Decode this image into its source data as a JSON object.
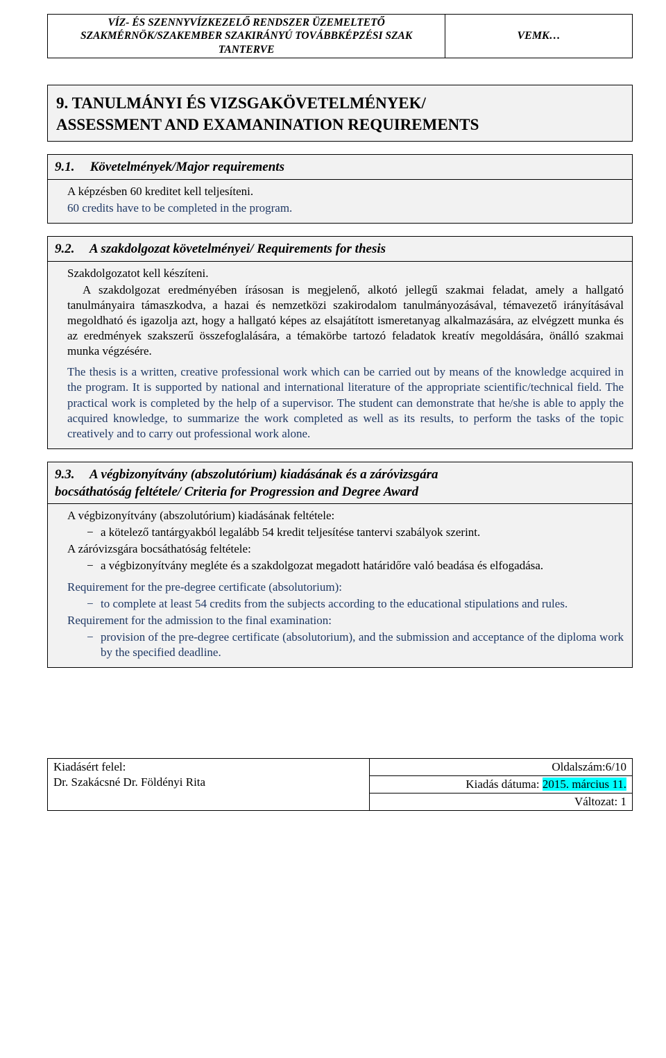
{
  "header": {
    "left_line1": "VÍZ- ÉS SZENNYVÍZKEZELŐ RENDSZER ÜZEMELTETŐ",
    "left_line2": "SZAKMÉRNÖK/SZAKEMBER SZAKIRÁNYÚ TOVÁBBKÉPZÉSI SZAK",
    "left_line3": "TANTERVE",
    "right": "VEMK…"
  },
  "section9": {
    "title_line1": "9. TANULMÁNYI ÉS VIZSGAKÖVETELMÉNYEK/",
    "title_line2": "ASSESSMENT AND EXAMANINATION REQUIREMENTS"
  },
  "s91": {
    "num": "9.1.",
    "heading": "Követelmények/Major requirements",
    "hu": "A képzésben 60 kreditet kell teljesíteni.",
    "en": "60 credits have to be completed in the program."
  },
  "s92": {
    "num": "9.2.",
    "heading": "A szakdolgozat követelményei/ Requirements for thesis",
    "hu1": "Szakdolgozatot kell készíteni.",
    "hu2": "A szakdolgozat eredményében írásosan is megjelenő, alkotó jellegű szakmai feladat, amely a hallgató tanulmányaira támaszkodva, a hazai és nemzetközi szakirodalom tanulmányozásával, témavezető irányításával megoldható és igazolja azt, hogy a hallgató képes az elsajátított ismeretanyag alkalmazására, az elvégzett munka és az eredmények szakszerű összefoglalására, a témakörbe tartozó feladatok kreatív megoldására, önálló szakmai munka végzésére.",
    "en": "The thesis is a written, creative professional work which can be carried out by means of the knowledge acquired in the program. It is supported by national and international literature of the appropriate scientific/technical field. The practical work is completed by the help of a supervisor. The student can demonstrate that he/she is able to apply the acquired knowledge, to summarize the work completed as well as its results, to perform the tasks of the topic creatively and to carry out professional work alone."
  },
  "s93": {
    "num": "9.3.",
    "heading_line1": "A végbizonyítvány (abszolutórium) kiadásának és a záróvizsgára",
    "heading_line2": "bocsáthatóság feltétele/ Criteria for Progression and Degree Award",
    "hu_intro1": "A végbizonyítvány (abszolutórium) kiadásának feltétele:",
    "hu_b1": "a kötelező tantárgyakból legalább 54 kredit teljesítése tantervi szabályok szerint.",
    "hu_intro2": "A záróvizsgára bocsáthatóság feltétele:",
    "hu_b2": "a végbizonyítvány megléte és a szakdolgozat megadott határidőre való beadása és elfogadása.",
    "en_intro1": "Requirement for the pre-degree certificate (absolutorium):",
    "en_b1": " to complete at least 54 credits from the subjects according to the educational stipulations and rules.",
    "en_intro2": "Requirement for the admission to the final examination:",
    "en_b2": "provision of the pre-degree certificate (absolutorium), and the submission and acceptance of the diploma work by the specified deadline."
  },
  "footer": {
    "l1": "Kiadásért felel:",
    "l2": "Dr. Szakácsné Dr. Földényi Rita",
    "r1": "Oldalszám:6/10",
    "r2a": "Kiadás dátuma: ",
    "r2b": "2015. március 11.",
    "r3": "Változat: 1"
  }
}
